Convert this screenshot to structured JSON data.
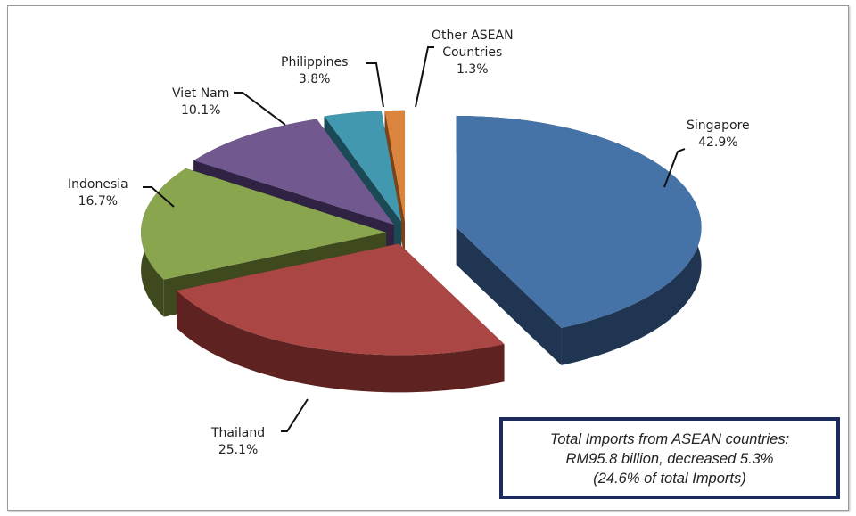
{
  "chart_data": {
    "type": "pie",
    "style": "3d-exploded",
    "categories": [
      "Singapore",
      "Thailand",
      "Indonesia",
      "Viet Nam",
      "Philippines",
      "Other ASEAN Countries"
    ],
    "values": [
      42.9,
      25.1,
      16.7,
      10.1,
      3.8,
      1.3
    ],
    "data_labels": [
      "42.9%",
      "25.1%",
      "16.7%",
      "10.1%",
      "3.8%",
      "1.3%"
    ],
    "label_names": [
      "Singapore",
      "Thailand",
      "Indonesia",
      "Viet Nam",
      "Philippines",
      "Other ASEAN\nCountries"
    ],
    "colors": [
      "#4572A7",
      "#AA4643",
      "#89A54E",
      "#71588F",
      "#4198AF",
      "#DB843D"
    ],
    "side_colors": [
      "#1f3552",
      "#5e2220",
      "#3e4a1e",
      "#2f2242",
      "#1b4a56",
      "#7c4416"
    ],
    "legend": "none"
  },
  "annotation": {
    "line1": "Total Imports from ASEAN countries:",
    "line2": "RM95.8 billion, decreased 5.3%",
    "line3": "(24.6% of total Imports)"
  }
}
